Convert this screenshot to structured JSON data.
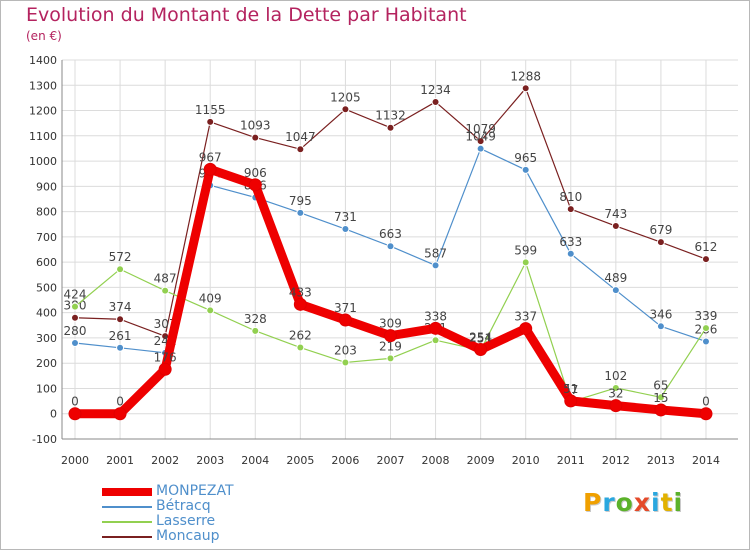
{
  "title": "Evolution du Montant de la Dette par Habitant",
  "subtitle": "(en €)",
  "logo": {
    "text": "Proxiti",
    "colors": [
      "#f0a000",
      "#2aa7df",
      "#5bb22a",
      "#e44a2a",
      "#2aa7df",
      "#e2b200",
      "#5bb22a"
    ]
  },
  "chart_data": {
    "type": "line",
    "x": [
      "2000",
      "2001",
      "2002",
      "2003",
      "2004",
      "2005",
      "2006",
      "2007",
      "2008",
      "2009",
      "2010",
      "2011",
      "2012",
      "2013",
      "2014"
    ],
    "ylim": [
      -100,
      1400
    ],
    "yticks": [
      -100,
      0,
      100,
      200,
      300,
      400,
      500,
      600,
      700,
      800,
      900,
      1000,
      1100,
      1200,
      1300,
      1400
    ],
    "grid": true,
    "legend_position": "bottom-left",
    "series": [
      {
        "name": "Moncaup",
        "color": "#7a2020",
        "values": [
          380,
          374,
          307,
          1155,
          1093,
          1047,
          1205,
          1132,
          1234,
          1079,
          1288,
          810,
          743,
          679,
          612
        ],
        "labels": [
          "380",
          "374",
          "307",
          "1155",
          "1093",
          "1047",
          "1205",
          "1132",
          "1234",
          "1079",
          "1288",
          "810",
          "743",
          "679",
          "612"
        ]
      },
      {
        "name": "Bétracq",
        "color": "#4f8fcb",
        "values": [
          280,
          261,
          241,
          904,
          856,
          795,
          731,
          663,
          587,
          1049,
          965,
          633,
          489,
          346,
          286
        ],
        "labels": [
          "280",
          "261",
          "241",
          "904",
          "856",
          "795",
          "731",
          "663",
          "587",
          "1049",
          "965",
          "633",
          "489",
          "346",
          "286"
        ]
      },
      {
        "name": "Lasserre",
        "color": "#92d050",
        "values": [
          424,
          572,
          487,
          409,
          328,
          262,
          203,
          219,
          291,
          251,
          599,
          47,
          102,
          65,
          339
        ],
        "labels": [
          "424",
          "572",
          "487",
          "409",
          "328",
          "262",
          "203",
          "219",
          "291",
          "251",
          "599",
          "47",
          "102",
          "65",
          "339"
        ]
      },
      {
        "name": "MONPEZAT",
        "color": "#ee0000",
        "values": [
          0,
          0,
          176,
          967,
          906,
          433,
          371,
          309,
          338,
          254,
          337,
          51,
          32,
          15,
          0
        ],
        "labels": [
          "0",
          "0",
          "176",
          "967",
          "906",
          "433",
          "371",
          "309",
          "338",
          "254",
          "337",
          "51",
          "32",
          "15",
          "0"
        ]
      }
    ]
  },
  "legend": [
    {
      "name": "MONPEZAT",
      "color": "#ee0000"
    },
    {
      "name": "Bétracq",
      "color": "#4f8fcb"
    },
    {
      "name": "Lasserre",
      "color": "#92d050"
    },
    {
      "name": "Moncaup",
      "color": "#7a2020"
    }
  ]
}
